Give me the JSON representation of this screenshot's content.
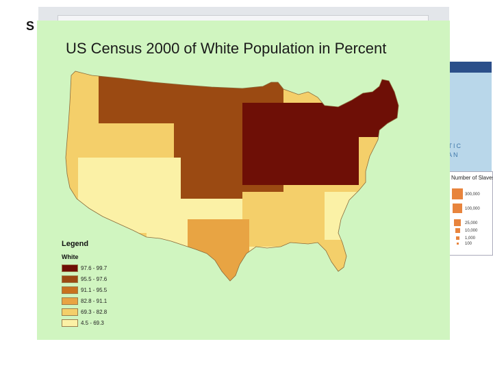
{
  "slide_letter": "S",
  "map": {
    "title": "US Census 2000 of White Population in Percent",
    "legend_heading": "Legend",
    "legend_field": "White",
    "classes": [
      {
        "range": "97.6 - 99.7",
        "color": "#6e0f06"
      },
      {
        "range": "95.5 - 97.6",
        "color": "#9b4a12"
      },
      {
        "range": "91.1 - 95.5",
        "color": "#c8721e"
      },
      {
        "range": "82.8 - 91.1",
        "color": "#e8a443"
      },
      {
        "range": "69.3 - 82.8",
        "color": "#f4cf6a"
      },
      {
        "range": "4.5 - 69.3",
        "color": "#fbf1a6"
      }
    ]
  },
  "background_map": {
    "ocean_label_line1": "NTIC",
    "ocean_label_line2": "AN",
    "legend_title": "Number of Slaves",
    "legend_values": [
      "300,000",
      "100,000",
      "25,000",
      "10,000",
      "1,000",
      "100"
    ]
  }
}
